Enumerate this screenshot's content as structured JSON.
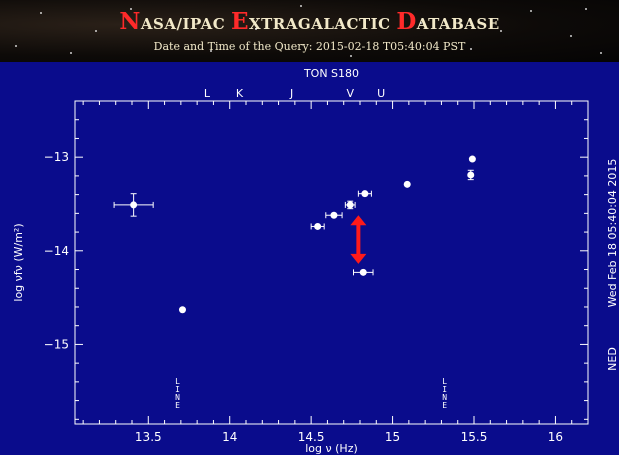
{
  "header": {
    "title_words": [
      {
        "cap": "N",
        "rest": "ASA/IPAC "
      },
      {
        "cap": "E",
        "rest": "XTRAGALACTIC "
      },
      {
        "cap": "D",
        "rest": "ATABASE"
      }
    ],
    "subtitle": "Date and Time of the Query: 2015-02-18 T05:40:04 PST"
  },
  "chart_data": {
    "type": "scatter",
    "title": "TON S180",
    "xlabel": "log ν (Hz)",
    "ylabel": "log νfν (W/m²)",
    "xlim": [
      13.05,
      16.2
    ],
    "ylim": [
      -15.85,
      -12.4
    ],
    "x_ticks": [
      13.5,
      14,
      14.5,
      15,
      15.5,
      16
    ],
    "x_tick_labels": [
      "13.5",
      "14",
      "14.5",
      "15",
      "15.5",
      "16"
    ],
    "y_ticks": [
      -13,
      -14,
      -15
    ],
    "y_tick_labels": [
      "−13",
      "−14",
      "−15"
    ],
    "band_labels": [
      {
        "label": "L",
        "x": 13.86
      },
      {
        "label": "K",
        "x": 14.06
      },
      {
        "label": "J",
        "x": 14.38
      },
      {
        "label": "V",
        "x": 14.74
      },
      {
        "label": "U",
        "x": 14.93
      }
    ],
    "line_markers": [
      {
        "label": "LINE",
        "x": 13.68
      },
      {
        "label": "LINE",
        "x": 15.32
      }
    ],
    "points": [
      {
        "x": 13.41,
        "y": -13.51,
        "xerr": 0.12,
        "yerr": 0.12
      },
      {
        "x": 13.71,
        "y": -14.63,
        "xerr": 0,
        "yerr": 0
      },
      {
        "x": 14.54,
        "y": -13.74,
        "xerr": 0.04,
        "yerr": 0
      },
      {
        "x": 14.64,
        "y": -13.62,
        "xerr": 0.05,
        "yerr": 0
      },
      {
        "x": 14.74,
        "y": -13.51,
        "xerr": 0.03,
        "yerr": 0.04
      },
      {
        "x": 14.83,
        "y": -13.39,
        "xerr": 0.04,
        "yerr": 0
      },
      {
        "x": 14.82,
        "y": -14.23,
        "xerr": 0.06,
        "yerr": 0
      },
      {
        "x": 15.09,
        "y": -13.29,
        "xerr": 0,
        "yerr": 0
      },
      {
        "x": 15.48,
        "y": -13.19,
        "xerr": 0,
        "yerr": 0.05
      },
      {
        "x": 15.49,
        "y": -13.02,
        "xerr": 0,
        "yerr": 0
      }
    ],
    "annotation_arrow": {
      "x": 14.79,
      "y_top": -13.62,
      "y_bottom": -14.14,
      "color": "#ff1a1a"
    },
    "right_labels": [
      "Wed Feb 18 05:40:04 2015",
      "NED"
    ],
    "colors": {
      "background": "#0a0c8c",
      "foreground": "#ffffff"
    }
  }
}
